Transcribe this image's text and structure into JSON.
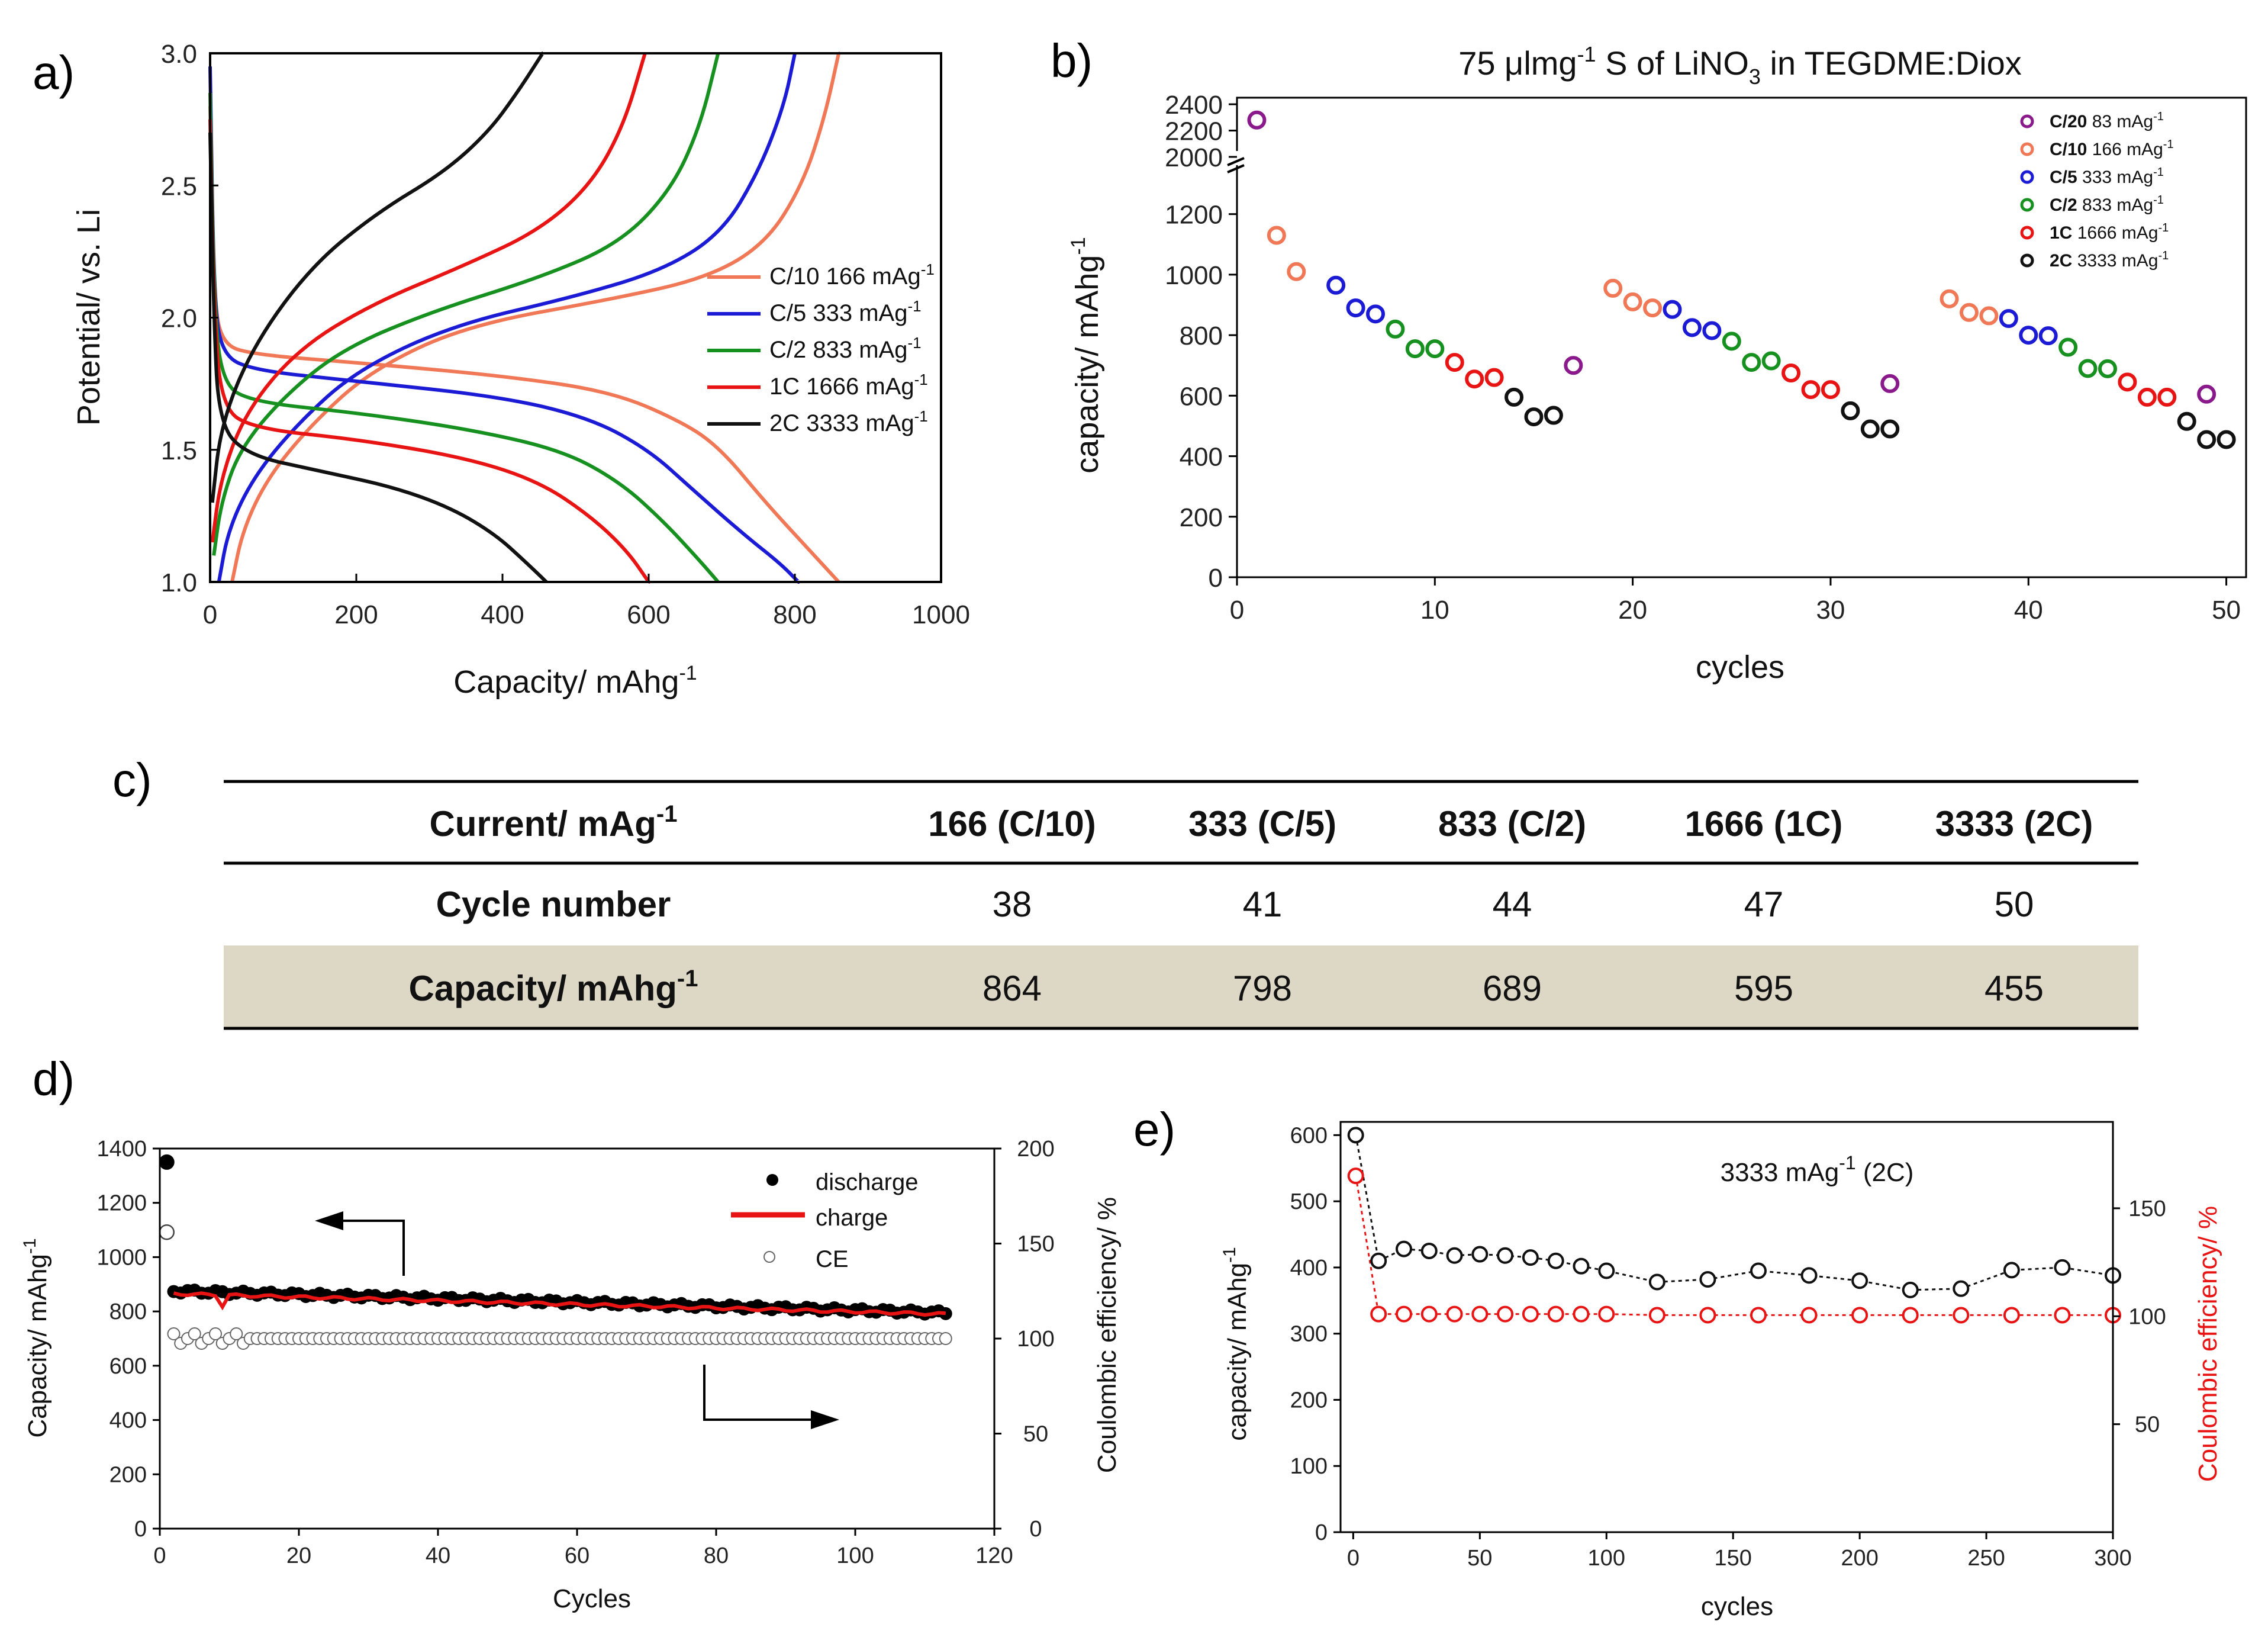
{
  "chart_data": [
    {
      "panel": "a)",
      "type": "line",
      "xlabel": "Capacity/ mAhg",
      "xlabel_sup": "-1",
      "ylabel": "Potential/ vs. Li",
      "xlim": [
        0,
        1000
      ],
      "ylim": [
        1.0,
        3.0
      ],
      "xticks": [
        "0",
        "200",
        "400",
        "600",
        "800",
        "1000"
      ],
      "yticks": [
        "1.0",
        "1.5",
        "2.0",
        "2.5",
        "3.0"
      ],
      "legend_position": "right",
      "series": [
        {
          "name": "C/10 166 mAg",
          "sup": "-1",
          "color": "#f07856",
          "discharge": [
            [
              0,
              2.8
            ],
            [
              5,
              2.1
            ],
            [
              15,
              1.9
            ],
            [
              60,
              1.86
            ],
            [
              200,
              1.83
            ],
            [
              400,
              1.78
            ],
            [
              550,
              1.72
            ],
            [
              650,
              1.6
            ],
            [
              700,
              1.5
            ],
            [
              760,
              1.3
            ],
            [
              820,
              1.12
            ],
            [
              860,
              1.0
            ]
          ],
          "charge": [
            [
              30,
              1.0
            ],
            [
              45,
              1.2
            ],
            [
              80,
              1.4
            ],
            [
              140,
              1.6
            ],
            [
              220,
              1.8
            ],
            [
              350,
              1.97
            ],
            [
              550,
              2.07
            ],
            [
              680,
              2.15
            ],
            [
              760,
              2.28
            ],
            [
              810,
              2.5
            ],
            [
              840,
              2.75
            ],
            [
              860,
              3.0
            ]
          ]
        },
        {
          "name": "C/5 333 mAg",
          "sup": "-1",
          "color": "#1b1bd6",
          "discharge": [
            [
              0,
              2.95
            ],
            [
              5,
              2.1
            ],
            [
              15,
              1.86
            ],
            [
              60,
              1.8
            ],
            [
              200,
              1.76
            ],
            [
              400,
              1.7
            ],
            [
              520,
              1.62
            ],
            [
              600,
              1.5
            ],
            [
              660,
              1.35
            ],
            [
              730,
              1.18
            ],
            [
              780,
              1.07
            ],
            [
              805,
              1.0
            ]
          ],
          "charge": [
            [
              12,
              1.0
            ],
            [
              25,
              1.2
            ],
            [
              60,
              1.4
            ],
            [
              120,
              1.6
            ],
            [
              200,
              1.8
            ],
            [
              330,
              1.97
            ],
            [
              500,
              2.08
            ],
            [
              620,
              2.18
            ],
            [
              700,
              2.32
            ],
            [
              750,
              2.55
            ],
            [
              785,
              2.8
            ],
            [
              800,
              3.0
            ]
          ]
        },
        {
          "name": "C/2 833 mAg",
          "sup": "-1",
          "color": "#16901e",
          "discharge": [
            [
              0,
              2.85
            ],
            [
              5,
              2.1
            ],
            [
              15,
              1.75
            ],
            [
              60,
              1.68
            ],
            [
              200,
              1.64
            ],
            [
              350,
              1.58
            ],
            [
              480,
              1.5
            ],
            [
              560,
              1.38
            ],
            [
              620,
              1.23
            ],
            [
              670,
              1.08
            ],
            [
              695,
              1.0
            ]
          ],
          "charge": [
            [
              5,
              1.1
            ],
            [
              15,
              1.3
            ],
            [
              40,
              1.5
            ],
            [
              100,
              1.7
            ],
            [
              180,
              1.88
            ],
            [
              300,
              2.02
            ],
            [
              450,
              2.15
            ],
            [
              560,
              2.28
            ],
            [
              630,
              2.48
            ],
            [
              670,
              2.72
            ],
            [
              695,
              3.0
            ]
          ]
        },
        {
          "name": "1C 1666 mAg",
          "sup": "-1",
          "color": "#e81414",
          "discharge": [
            [
              0,
              2.75
            ],
            [
              5,
              2.05
            ],
            [
              15,
              1.66
            ],
            [
              60,
              1.58
            ],
            [
              200,
              1.54
            ],
            [
              350,
              1.47
            ],
            [
              450,
              1.38
            ],
            [
              520,
              1.25
            ],
            [
              570,
              1.12
            ],
            [
              600,
              1.0
            ]
          ],
          "charge": [
            [
              3,
              1.15
            ],
            [
              15,
              1.4
            ],
            [
              50,
              1.65
            ],
            [
              120,
              1.88
            ],
            [
              220,
              2.05
            ],
            [
              350,
              2.2
            ],
            [
              450,
              2.33
            ],
            [
              520,
              2.5
            ],
            [
              565,
              2.72
            ],
            [
              595,
              3.0
            ]
          ]
        },
        {
          "name": "2C 3333 mAg",
          "sup": "-1",
          "color": "#111111",
          "discharge": [
            [
              0,
              2.7
            ],
            [
              5,
              2.0
            ],
            [
              12,
              1.6
            ],
            [
              50,
              1.48
            ],
            [
              150,
              1.42
            ],
            [
              250,
              1.36
            ],
            [
              330,
              1.28
            ],
            [
              390,
              1.18
            ],
            [
              430,
              1.08
            ],
            [
              460,
              1.0
            ]
          ],
          "charge": [
            [
              3,
              1.3
            ],
            [
              15,
              1.6
            ],
            [
              60,
              1.9
            ],
            [
              140,
              2.2
            ],
            [
              230,
              2.4
            ],
            [
              320,
              2.55
            ],
            [
              380,
              2.7
            ],
            [
              420,
              2.85
            ],
            [
              455,
              3.0
            ]
          ]
        }
      ]
    },
    {
      "panel": "b)",
      "type": "scatter",
      "title": "75 μlmg",
      "title_sup1": "-1",
      "title_mid": " S of LiNO",
      "title_sub": "3",
      "title_end": " in TEGDME:Diox",
      "xlabel": "cycles",
      "ylabel": "capacity/ mAhg",
      "ylabel_sup": "-1",
      "xlim": [
        0,
        51
      ],
      "ylim": [
        0,
        1350
      ],
      "y_axis_break": {
        "lower_max": 1350,
        "upper_min": 2000,
        "upper_max": 2450
      },
      "xticks": [
        "0",
        "10",
        "20",
        "30",
        "40",
        "50"
      ],
      "yticks_lower": [
        "0",
        "200",
        "400",
        "600",
        "800",
        "1000",
        "1200"
      ],
      "yticks_upper": [
        "2000",
        "2200",
        "2400"
      ],
      "legend_position": "top-right",
      "series": [
        {
          "name": "C/20",
          "rate": "83 mAg",
          "sup": "-1",
          "color": "#8a1a8c",
          "points": [
            [
              1,
              2280
            ],
            [
              17,
              700
            ],
            [
              33,
              640
            ],
            [
              49,
              605
            ]
          ]
        },
        {
          "name": "C/10",
          "rate": "166 mAg",
          "sup": "-1",
          "color": "#f07856",
          "points": [
            [
              2,
              1130
            ],
            [
              3,
              1010
            ],
            [
              19,
              955
            ],
            [
              20,
              910
            ],
            [
              21,
              890
            ],
            [
              36,
              920
            ],
            [
              37,
              875
            ],
            [
              38,
              864
            ]
          ]
        },
        {
          "name": "C/5",
          "rate": "333 mAg",
          "sup": "-1",
          "color": "#1b1bd6",
          "points": [
            [
              5,
              965
            ],
            [
              6,
              890
            ],
            [
              7,
              870
            ],
            [
              22,
              885
            ],
            [
              23,
              825
            ],
            [
              24,
              815
            ],
            [
              39,
              855
            ],
            [
              40,
              800
            ],
            [
              41,
              798
            ]
          ]
        },
        {
          "name": "C/2",
          "rate": "833 mAg",
          "sup": "-1",
          "color": "#16901e",
          "points": [
            [
              8,
              820
            ],
            [
              9,
              755
            ],
            [
              10,
              755
            ],
            [
              25,
              780
            ],
            [
              26,
              710
            ],
            [
              27,
              715
            ],
            [
              42,
              760
            ],
            [
              43,
              690
            ],
            [
              44,
              689
            ]
          ]
        },
        {
          "name": "1C",
          "rate": "1666 mAg",
          "sup": "-1",
          "color": "#e81414",
          "points": [
            [
              11,
              710
            ],
            [
              12,
              655
            ],
            [
              13,
              660
            ],
            [
              28,
              675
            ],
            [
              29,
              620
            ],
            [
              30,
              620
            ],
            [
              45,
              645
            ],
            [
              46,
              595
            ],
            [
              47,
              595
            ]
          ]
        },
        {
          "name": "2C",
          "rate": "3333 mAg",
          "sup": "-1",
          "color": "#111111",
          "points": [
            [
              14,
              595
            ],
            [
              15,
              530
            ],
            [
              16,
              535
            ],
            [
              31,
              550
            ],
            [
              32,
              490
            ],
            [
              33,
              490
            ],
            [
              48,
              515
            ],
            [
              49,
              455
            ],
            [
              50,
              455
            ]
          ]
        }
      ]
    },
    {
      "panel": "c)",
      "type": "table",
      "header_label": "Current/ mAg",
      "header_sup": "-1",
      "columns": [
        "166 (C/10)",
        "333 (C/5)",
        "833 (C/2)",
        "1666 (1C)",
        "3333 (2C)"
      ],
      "rows": [
        {
          "label": "Cycle number",
          "label_sup": "",
          "values": [
            "38",
            "41",
            "44",
            "47",
            "50"
          ]
        },
        {
          "label": "Capacity/ mAhg",
          "label_sup": "-1",
          "values": [
            "864",
            "798",
            "689",
            "595",
            "455"
          ]
        }
      ],
      "shade_color": "#ddd8c6"
    },
    {
      "panel": "d)",
      "type": "scatter",
      "xlabel": "Cycles",
      "ylabel": "Capacity/ mAhg",
      "ylabel_sup": "-1",
      "y2label": "Coulombic efficiency/ %",
      "xlim": [
        0,
        120
      ],
      "ylim": [
        0,
        1400
      ],
      "y2lim": [
        0,
        200
      ],
      "xticks": [
        "0",
        "20",
        "40",
        "60",
        "80",
        "100",
        "120"
      ],
      "yticks": [
        "0",
        "200",
        "400",
        "600",
        "800",
        "1000",
        "1200",
        "1400"
      ],
      "y2ticks": [
        "0",
        "50",
        "100",
        "150",
        "200"
      ],
      "legend_position": "top-right",
      "legend": [
        "discharge",
        "charge",
        "CE"
      ],
      "discharge_first": [
        1,
        1350
      ],
      "discharge_start": 875,
      "discharge_end": 795,
      "charge_start": 865,
      "charge_end": 790,
      "ce_first": [
        1,
        156
      ],
      "ce_typical": 100,
      "n_cycles": 113
    },
    {
      "panel": "e)",
      "type": "scatter",
      "annotation": "3333 mAg",
      "annotation_sup": "-1",
      "annotation_end": " (2C)",
      "xlabel": "cycles",
      "ylabel": "capacity/ mAhg",
      "ylabel_sup": "-1",
      "y2label": "Coulombic efficiency/ %",
      "xlim": [
        -5,
        300
      ],
      "ylim": [
        0,
        620
      ],
      "y2lim": [
        0,
        190
      ],
      "xticks": [
        "0",
        "50",
        "100",
        "150",
        "200",
        "250",
        "300"
      ],
      "yticks": [
        "0",
        "100",
        "200",
        "300",
        "400",
        "500",
        "600"
      ],
      "y2ticks": [
        "50",
        "100",
        "150"
      ],
      "capacity": {
        "color": "#111111",
        "points": [
          [
            1,
            600
          ],
          [
            10,
            410
          ],
          [
            20,
            428
          ],
          [
            30,
            425
          ],
          [
            40,
            418
          ],
          [
            50,
            420
          ],
          [
            60,
            418
          ],
          [
            70,
            415
          ],
          [
            80,
            410
          ],
          [
            90,
            402
          ],
          [
            100,
            395
          ],
          [
            120,
            378
          ],
          [
            140,
            382
          ],
          [
            160,
            395
          ],
          [
            180,
            388
          ],
          [
            200,
            380
          ],
          [
            220,
            366
          ],
          [
            240,
            368
          ],
          [
            260,
            396
          ],
          [
            280,
            400
          ],
          [
            300,
            388
          ]
        ]
      },
      "ce": {
        "color": "#e81414",
        "points": [
          [
            1,
            165
          ],
          [
            10,
            101
          ],
          [
            20,
            101
          ],
          [
            30,
            101
          ],
          [
            40,
            101
          ],
          [
            50,
            101
          ],
          [
            60,
            101
          ],
          [
            70,
            101
          ],
          [
            80,
            101
          ],
          [
            90,
            101
          ],
          [
            100,
            101
          ],
          [
            120,
            100.5
          ],
          [
            140,
            100.5
          ],
          [
            160,
            100.5
          ],
          [
            180,
            100.5
          ],
          [
            200,
            100.5
          ],
          [
            220,
            100.5
          ],
          [
            240,
            100.5
          ],
          [
            260,
            100.5
          ],
          [
            280,
            100.5
          ],
          [
            300,
            100.5
          ]
        ]
      }
    }
  ]
}
